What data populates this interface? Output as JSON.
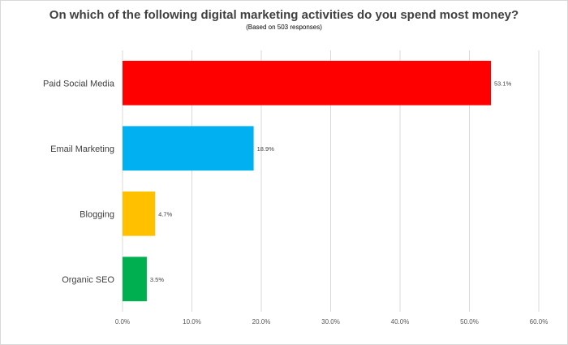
{
  "chart_data": {
    "type": "bar",
    "orientation": "horizontal",
    "title": "On which of the following digital marketing activities do you spend most money?",
    "subtitle": "(Based on 503 responses)",
    "categories": [
      "Paid  Social Media",
      "Email Marketing",
      "Blogging",
      "Organic SEO"
    ],
    "values": [
      53.1,
      18.9,
      4.7,
      3.5
    ],
    "data_labels": [
      "53.1%",
      "18.9%",
      "4.7%",
      "3.5%"
    ],
    "colors": [
      "#ff0000",
      "#00b0f0",
      "#ffc000",
      "#00b050"
    ],
    "xlim": [
      0,
      60
    ],
    "x_ticks": [
      0,
      10,
      20,
      30,
      40,
      50,
      60
    ],
    "x_tick_labels": [
      "0.0%",
      "10.0%",
      "20.0%",
      "30.0%",
      "40.0%",
      "50.0%",
      "60.0%"
    ],
    "grid": true,
    "legend": "none"
  }
}
